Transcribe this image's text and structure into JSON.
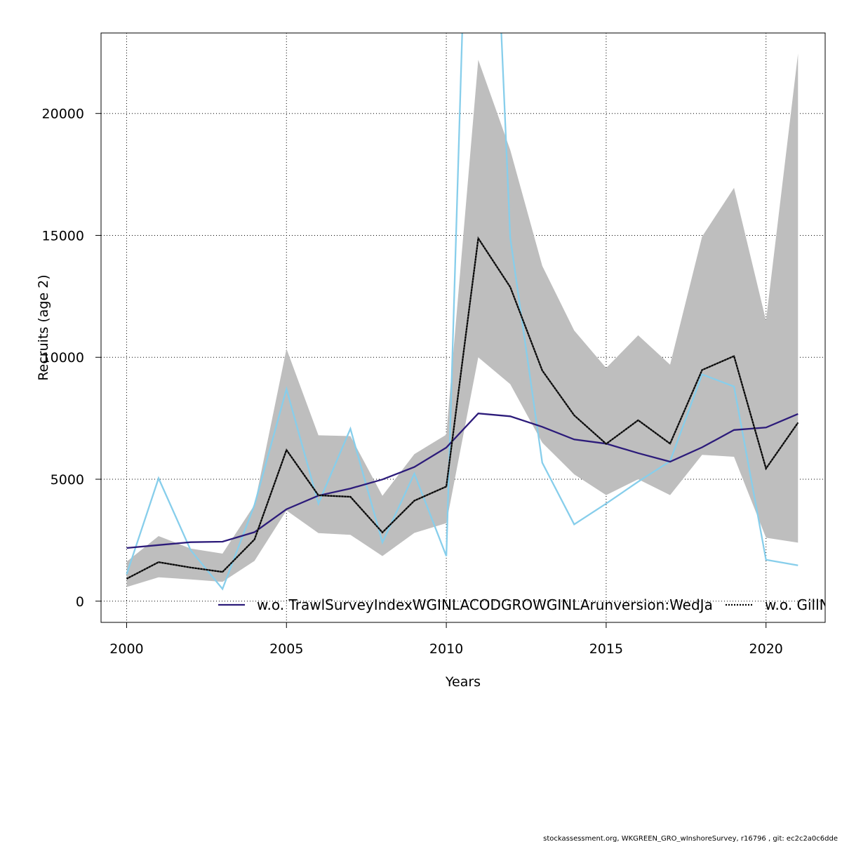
{
  "chart_data": {
    "type": "line",
    "xlabel": "Years",
    "ylabel": "Recruits (age 2)",
    "xlim": [
      1999.2,
      2021.85
    ],
    "ylim": [
      -870,
      23300
    ],
    "grid": true,
    "x_ticks": [
      2000,
      2005,
      2010,
      2015,
      2020
    ],
    "y_ticks": [
      0,
      5000,
      10000,
      15000,
      20000
    ],
    "x": [
      2000,
      2001,
      2002,
      2003,
      2004,
      2005,
      2006,
      2007,
      2008,
      2009,
      2010,
      2011,
      2012,
      2013,
      2014,
      2015,
      2016,
      2017,
      2018,
      2019,
      2020,
      2021
    ],
    "band": {
      "color": "#bebebe",
      "lower": [
        580,
        980,
        890,
        790,
        1650,
        3720,
        2790,
        2720,
        1850,
        2800,
        3200,
        10000,
        8900,
        6500,
        5200,
        4350,
        5000,
        4350,
        6000,
        5920,
        2600,
        2400
      ],
      "upper": [
        1620,
        2670,
        2160,
        1950,
        3950,
        10350,
        6800,
        6770,
        4320,
        6030,
        6830,
        22200,
        18500,
        13750,
        11100,
        9560,
        10900,
        9700,
        14950,
        16950,
        11500,
        22450
      ]
    },
    "series": [
      {
        "name": "w.o. TrawlSurveyIndexWGINLACODGROWGINLArunversion:WedJa",
        "color": "#2c1b7a",
        "dash": "solid",
        "values": [
          2180,
          2300,
          2420,
          2440,
          2830,
          3770,
          4330,
          4620,
          4990,
          5500,
          6300,
          7700,
          7580,
          7150,
          6630,
          6460,
          6070,
          5720,
          6310,
          7020,
          7120,
          7680
        ]
      },
      {
        "name": "w.o. GillN",
        "color": "#000000",
        "dash": "dotted",
        "values": [
          920,
          1600,
          1380,
          1200,
          2530,
          6200,
          4340,
          4280,
          2820,
          4120,
          4700,
          14880,
          12880,
          9460,
          7620,
          6450,
          7420,
          6460,
          9480,
          10050,
          5440,
          7320
        ]
      },
      {
        "name": "",
        "color": "#87ceeb",
        "dash": "solid",
        "values": [
          1100,
          5040,
          2100,
          500,
          3950,
          8700,
          4000,
          7070,
          2410,
          5230,
          1850,
          45000,
          14900,
          5680,
          3150,
          4000,
          4900,
          5740,
          9300,
          8800,
          1700,
          1470
        ]
      }
    ],
    "legend": {
      "placement": "bottom",
      "entries": [
        {
          "label": "w.o. TrawlSurveyIndexWGINLACODGROWGINLArunversion:WedJa",
          "color": "#2c1b7a",
          "dash": "solid"
        },
        {
          "label": "w.o. GillN",
          "color": "#000000",
          "dash": "dotted"
        }
      ]
    }
  },
  "footer": "stockassessment.org, WKGREEN_GRO_wInshoreSurvey, r16796 , git: ec2c2a0c6dde"
}
